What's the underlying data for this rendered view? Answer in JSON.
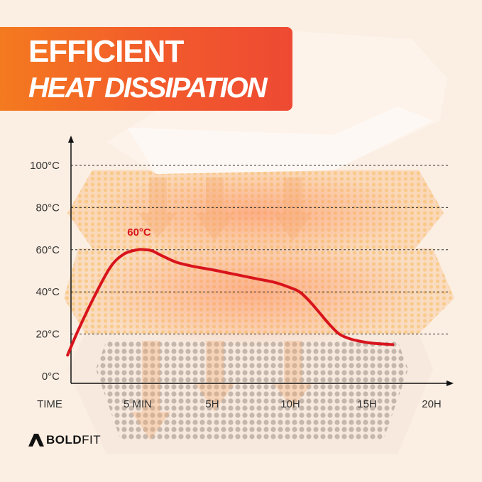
{
  "header": {
    "title": "EFFICIENT",
    "subtitle": "HEAT DISSIPATION",
    "banner_color": "#f25a2c"
  },
  "brand": {
    "logo_bold": "BOLD",
    "logo_rest": "FIT",
    "icon": "boldfit-logo-icon"
  },
  "chart_data": {
    "type": "line",
    "title": "",
    "xlabel": "TIME",
    "ylabel": "",
    "x_ticks": [
      "5 MIN",
      "5H",
      "10H",
      "15H",
      "20H"
    ],
    "y_ticks": [
      "0°C",
      "20°C",
      "40°C",
      "60°C",
      "80°C",
      "100°C"
    ],
    "ylim": [
      0,
      100
    ],
    "grid": "horizontal dashed",
    "line_color": "#d8141c",
    "annotation": {
      "text": "60°C",
      "x": 0.8,
      "y": 60
    },
    "series": [
      {
        "x": [
          -1.8,
          -1.4,
          -0.8,
          -0.2,
          0.3,
          0.8,
          1.2,
          1.6,
          2.2,
          3.0,
          4.0,
          5.0,
          6.0,
          7.0,
          8.0,
          9.0,
          10.0,
          10.6,
          11.2,
          11.8,
          12.5,
          13.2,
          14.0,
          15.0,
          15.8,
          16.5,
          17.0
        ],
        "y": [
          10,
          22,
          38,
          52,
          58,
          60,
          60,
          59.5,
          57,
          54,
          52,
          50.5,
          49,
          47.5,
          46,
          44.5,
          42,
          40,
          36,
          31,
          25,
          20,
          17.5,
          16,
          15.5,
          15.2,
          15
        ]
      }
    ]
  }
}
